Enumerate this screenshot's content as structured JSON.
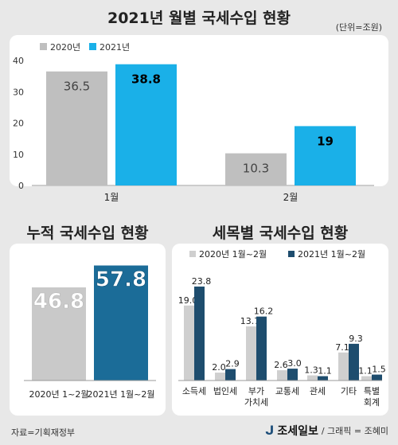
{
  "chart_data": [
    {
      "type": "bar",
      "title": "2021년 월별 국세수입 현황",
      "unit": "(단위=조원)",
      "categories": [
        "1월",
        "2월"
      ],
      "series": [
        {
          "name": "2020년",
          "values": [
            36.5,
            10.3
          ],
          "color": "#bfbfbf"
        },
        {
          "name": "2021년",
          "values": [
            38.8,
            19
          ],
          "color": "#1ab0e8"
        }
      ],
      "yticks": [
        0,
        10,
        20,
        30,
        40
      ],
      "ylim": [
        0,
        40
      ],
      "legend": "top-left",
      "grid": false
    },
    {
      "type": "bar",
      "title": "누적 국세수입 현황",
      "categories": [
        "2020년 1~2월",
        "2021년 1월~2월"
      ],
      "values": [
        46.8,
        57.8
      ],
      "colors": [
        "#c9c9c9",
        "#1b6c98"
      ]
    },
    {
      "type": "bar",
      "title": "세목별 국세수입 현황",
      "categories": [
        "소득세",
        "법인세",
        "부가\n가치세",
        "교통세",
        "관세",
        "기타",
        "특별\n회계"
      ],
      "series": [
        {
          "name": "2020년 1월~2월",
          "values": [
            19.0,
            2.0,
            13.7,
            2.6,
            1.3,
            7.1,
            1.1
          ],
          "color": "#cfcfcf"
        },
        {
          "name": "2021년 1월~2월",
          "values": [
            23.8,
            2.9,
            16.2,
            3.0,
            1.1,
            9.3,
            1.5
          ],
          "color": "#1e4d6e"
        }
      ],
      "value_labels": [
        [
          "19.0",
          "2.0",
          "13.7",
          "2.6",
          "1.3",
          "7.1",
          "1.1"
        ],
        [
          "23.8",
          "2.9",
          "16.2",
          "3.0",
          "1.1",
          "9.3",
          "1.5"
        ]
      ],
      "legend": "top"
    }
  ],
  "footer": {
    "source": "자료=기획재정부",
    "brand": "조세일보",
    "credit": "/ 그래픽 = 조혜미"
  }
}
